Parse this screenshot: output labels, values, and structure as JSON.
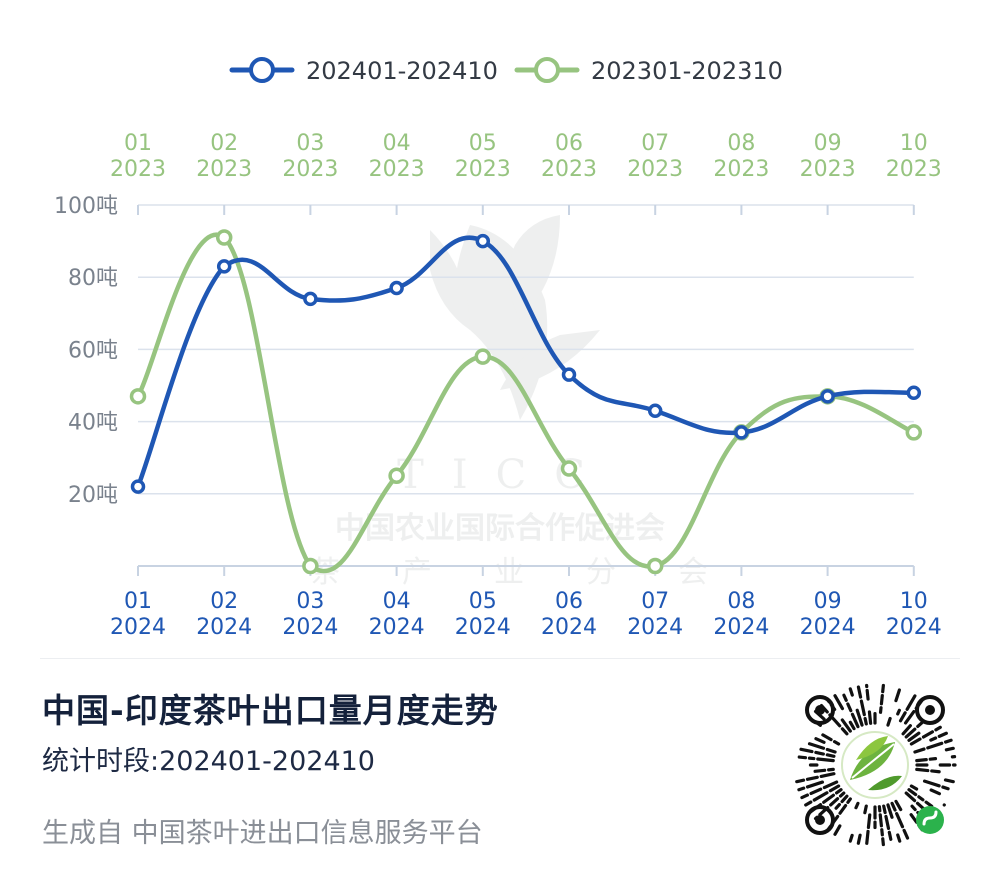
{
  "chart_data": {
    "type": "line",
    "title": "中国-印度茶叶出口量月度走势",
    "subtitle": "统计时段:202401-202410",
    "y_unit": "吨",
    "ylim": [
      0,
      100
    ],
    "y_ticks": [
      "20吨",
      "40吨",
      "60吨",
      "80吨",
      "100吨"
    ],
    "y_tick_values": [
      20,
      40,
      60,
      80,
      100
    ],
    "grid": true,
    "legend_position": "top",
    "series": [
      {
        "name": "202401-202410",
        "color": "#1f57b4",
        "axis": "bottom",
        "x_labels": [
          [
            "01",
            "2024"
          ],
          [
            "02",
            "2024"
          ],
          [
            "03",
            "2024"
          ],
          [
            "04",
            "2024"
          ],
          [
            "05",
            "2024"
          ],
          [
            "06",
            "2024"
          ],
          [
            "07",
            "2024"
          ],
          [
            "08",
            "2024"
          ],
          [
            "09",
            "2024"
          ],
          [
            "10",
            "2024"
          ]
        ],
        "values": [
          22,
          83,
          74,
          77,
          90,
          53,
          43,
          37,
          47,
          48
        ]
      },
      {
        "name": "202301-202310",
        "color": "#97c480",
        "axis": "top",
        "x_labels": [
          [
            "01",
            "2023"
          ],
          [
            "02",
            "2023"
          ],
          [
            "03",
            "2023"
          ],
          [
            "04",
            "2023"
          ],
          [
            "05",
            "2023"
          ],
          [
            "06",
            "2023"
          ],
          [
            "07",
            "2023"
          ],
          [
            "08",
            "2023"
          ],
          [
            "09",
            "2023"
          ],
          [
            "10",
            "2023"
          ]
        ],
        "values": [
          47,
          91,
          0,
          25,
          58,
          27,
          0,
          37,
          47,
          37
        ]
      }
    ]
  },
  "footer": {
    "source": "生成自 中国茶叶进出口信息服务平台"
  },
  "watermark": {
    "org_abbr": "TICC",
    "org_name": "中国农业国际合作促进会",
    "branch_chars": [
      "茶",
      "产",
      "业",
      "分",
      "会"
    ]
  },
  "qr_code": {
    "icon": "qr-code-icon",
    "center_icon": "tea-leaf-logo-icon",
    "badge_icon": "mini-program-icon"
  }
}
